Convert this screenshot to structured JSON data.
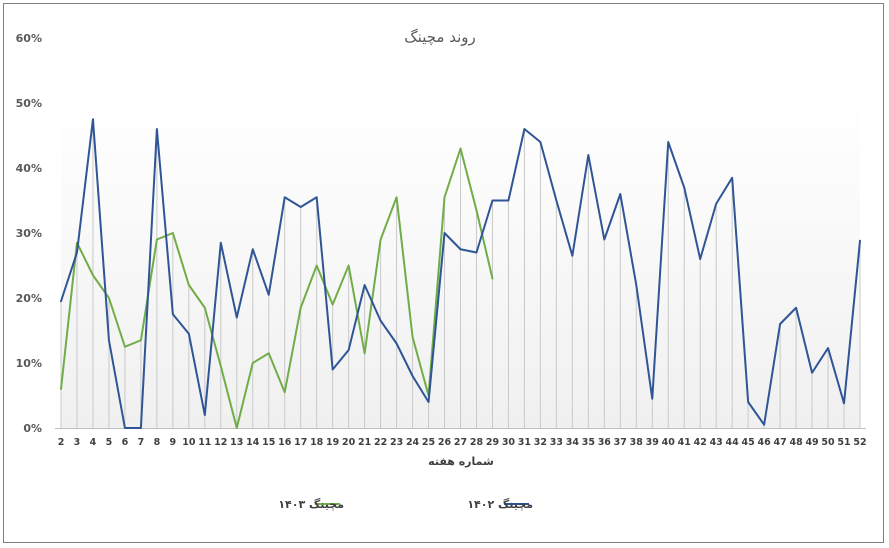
{
  "chart_data": {
    "type": "line",
    "title": "روند مچینگ",
    "xlabel": "شماره هفته",
    "ylabel": "",
    "ylim": [
      0,
      60
    ],
    "y_ticks": [
      "0%",
      "10%",
      "20%",
      "30%",
      "40%",
      "50%",
      "60%"
    ],
    "x": [
      "2",
      "3",
      "4",
      "5",
      "6",
      "7",
      "8",
      "9",
      "10",
      "11",
      "12",
      "13",
      "14",
      "15",
      "16",
      "17",
      "18",
      "19",
      "20",
      "21",
      "22",
      "23",
      "24",
      "25",
      "26",
      "27",
      "28",
      "29",
      "30",
      "31",
      "32",
      "33",
      "34",
      "35",
      "36",
      "37",
      "38",
      "39",
      "40",
      "41",
      "42",
      "43",
      "44",
      "45",
      "46",
      "47",
      "48",
      "49",
      "50",
      "51",
      "52"
    ],
    "grid": "vertical-drop-lines",
    "legend_position": "bottom",
    "series": [
      {
        "name": "مچینگ ۱۴۰۳",
        "color": "#70ad47",
        "values": [
          6,
          28.5,
          23.5,
          20,
          12.5,
          13.5,
          29,
          30,
          22,
          18.5,
          9.5,
          0,
          10,
          11.5,
          5.5,
          18.5,
          25,
          19,
          25,
          11.5,
          29,
          35.5,
          14,
          5,
          35.5,
          43,
          33.5,
          23,
          null,
          null,
          null,
          null,
          null,
          null,
          null,
          null,
          null,
          null,
          null,
          null,
          null,
          null,
          null,
          null,
          null,
          null,
          null,
          null,
          null,
          null,
          null
        ]
      },
      {
        "name": "مچینگ ۱۴۰۲",
        "color": "#2f5597",
        "values": [
          19.5,
          27,
          47.5,
          13.5,
          0,
          0,
          46,
          17.5,
          14.5,
          2,
          28.5,
          17,
          27.5,
          20.5,
          35.5,
          34,
          35.5,
          9,
          12,
          22,
          16.5,
          13,
          8,
          4,
          30,
          27.5,
          27,
          35,
          35,
          46,
          44,
          35,
          26.5,
          42,
          29,
          36,
          22,
          4.5,
          44,
          37,
          26,
          34.5,
          38.5,
          4,
          0.5,
          16,
          18.5,
          8.5,
          12.3,
          3.8,
          28.8
        ]
      }
    ]
  }
}
